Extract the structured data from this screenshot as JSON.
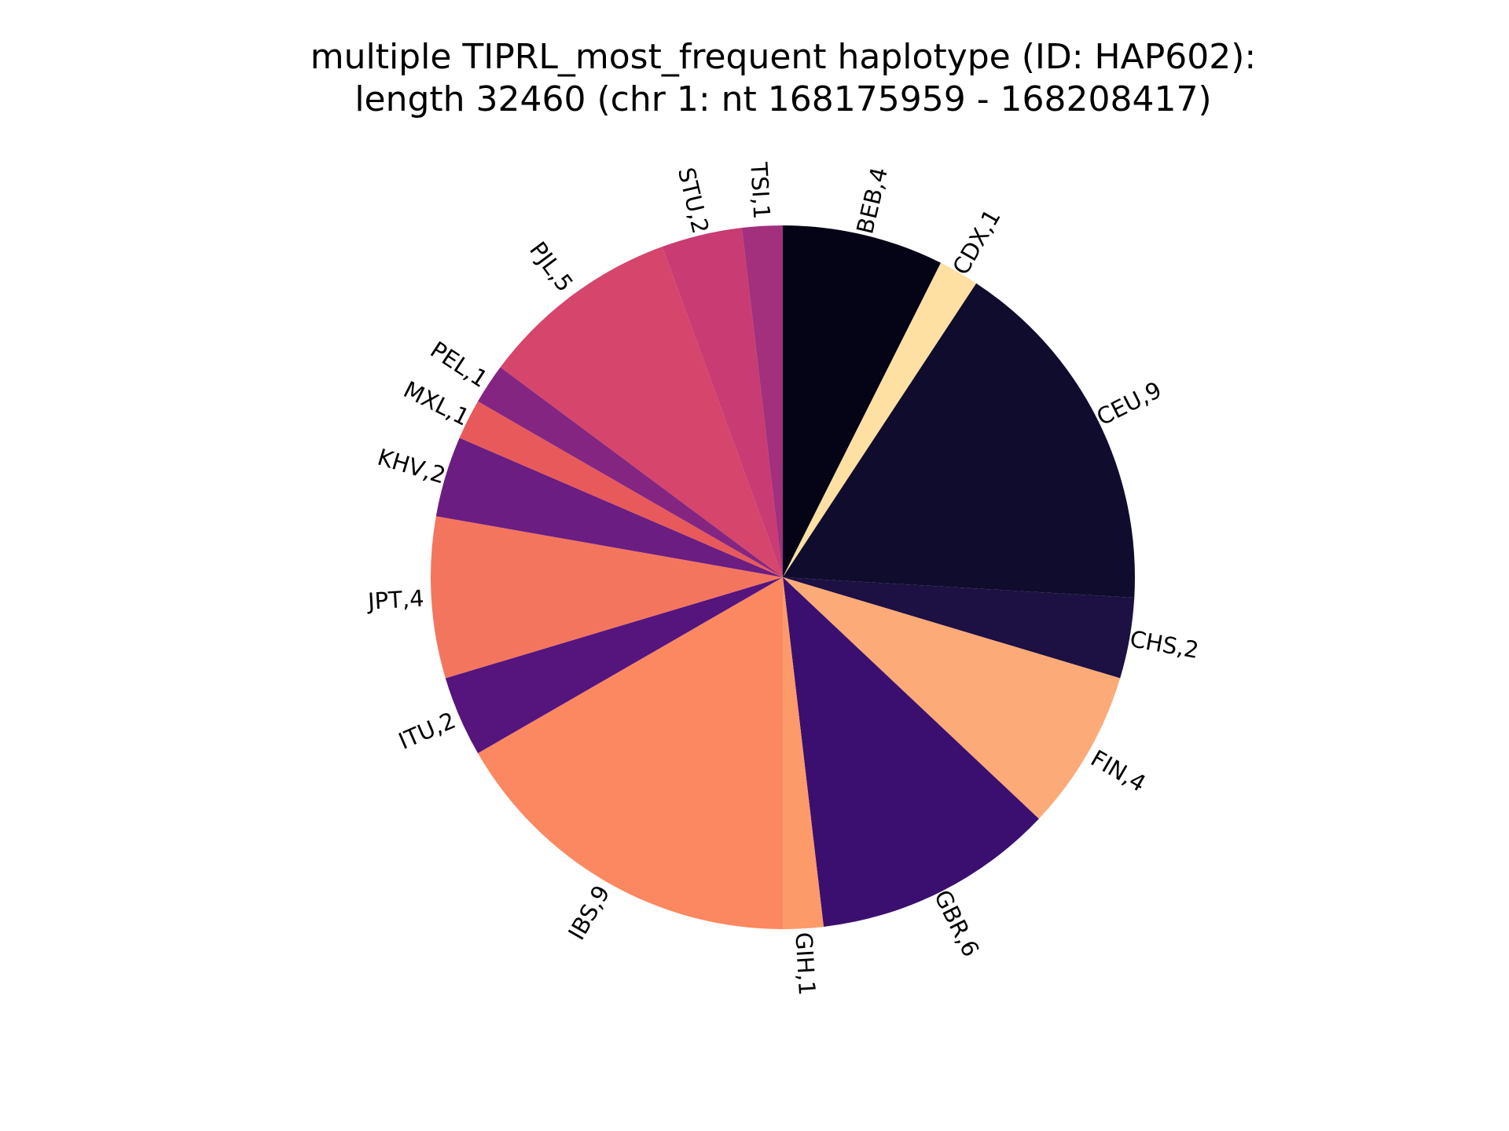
{
  "title_line1": "multiple TIPRL_most_frequent haplotype (ID: HAP602):",
  "title_line2": "length 32460 (chr 1: nt 168175959 - 168208417)",
  "chart_data": {
    "type": "pie",
    "title": "multiple TIPRL_most_frequent haplotype (ID: HAP602): length 32460 (chr 1: nt 168175959 - 168208417)",
    "start_angle": "12 o'clock",
    "direction": "clockwise",
    "slices": [
      {
        "label": "BEB,4",
        "value": 4,
        "color": "#050417"
      },
      {
        "label": "CDX,1",
        "value": 1,
        "color": "#fde0a2"
      },
      {
        "label": "CEU,9",
        "value": 9,
        "color": "#100c2e"
      },
      {
        "label": "CHS,2",
        "value": 2,
        "color": "#1d1042"
      },
      {
        "label": "FIN,4",
        "value": 4,
        "color": "#fcaa78"
      },
      {
        "label": "GBR,6",
        "value": 6,
        "color": "#3b0f6f"
      },
      {
        "label": "GIH,1",
        "value": 1,
        "color": "#fd9a6a"
      },
      {
        "label": "IBS,9",
        "value": 9,
        "color": "#fb8861"
      },
      {
        "label": "ITU,2",
        "value": 2,
        "color": "#56147d"
      },
      {
        "label": "JPT,4",
        "value": 4,
        "color": "#f4755e"
      },
      {
        "label": "KHV,2",
        "value": 2,
        "color": "#6b1d81"
      },
      {
        "label": "MXL,1",
        "value": 1,
        "color": "#e8595c"
      },
      {
        "label": "PEL,1",
        "value": 1,
        "color": "#842681"
      },
      {
        "label": "PJL,5",
        "value": 5,
        "color": "#d6456c"
      },
      {
        "label": "STU,2",
        "value": 2,
        "color": "#c83b73"
      },
      {
        "label": "TSI,1",
        "value": 1,
        "color": "#a2307c"
      }
    ]
  }
}
